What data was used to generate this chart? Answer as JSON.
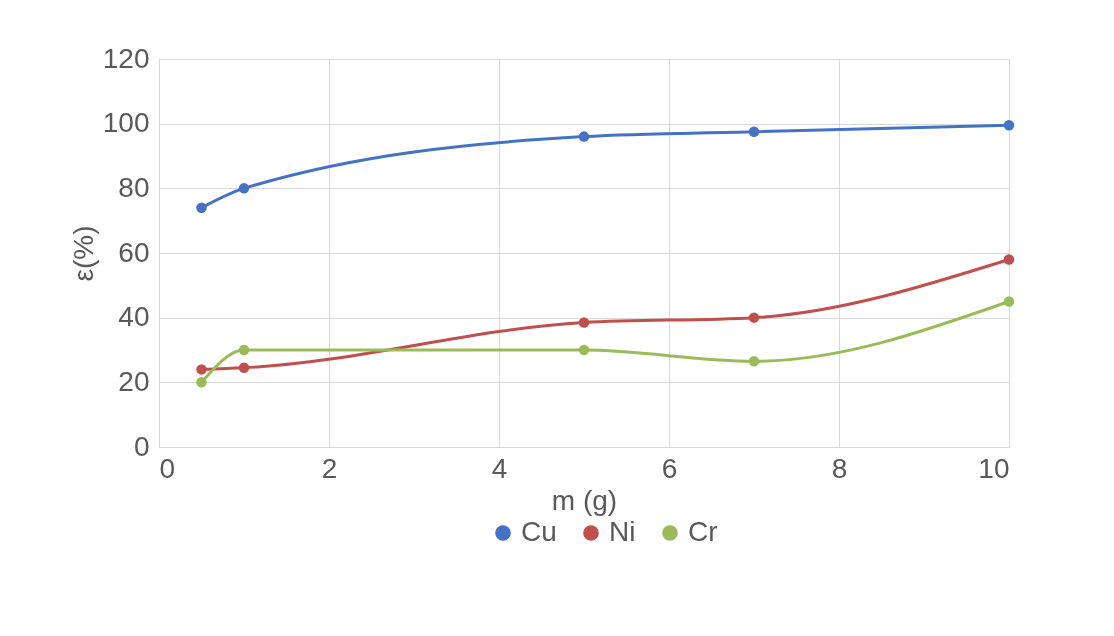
{
  "chart_data": {
    "type": "line",
    "xlabel": "m (g)",
    "ylabel": "ε(%)",
    "x": [
      0.5,
      1,
      5,
      7,
      10
    ],
    "series": [
      {
        "name": "Cu",
        "color": "#4472c4",
        "values": [
          74,
          80,
          96,
          97.5,
          99.5
        ]
      },
      {
        "name": "Ni",
        "color": "#c0504d",
        "values": [
          24,
          24.5,
          38.5,
          40,
          58
        ]
      },
      {
        "name": "Cr",
        "color": "#9bbb59",
        "values": [
          20,
          30,
          30,
          26.5,
          45
        ]
      }
    ],
    "xlim": [
      0,
      10
    ],
    "xticks": [
      0,
      2,
      4,
      6,
      8,
      10
    ],
    "ylim": [
      0,
      120
    ],
    "yticks": [
      0,
      20,
      40,
      60,
      80,
      100,
      120
    ],
    "grid": true,
    "legend": "bottom",
    "marker": "circle",
    "line_style": "solid"
  }
}
